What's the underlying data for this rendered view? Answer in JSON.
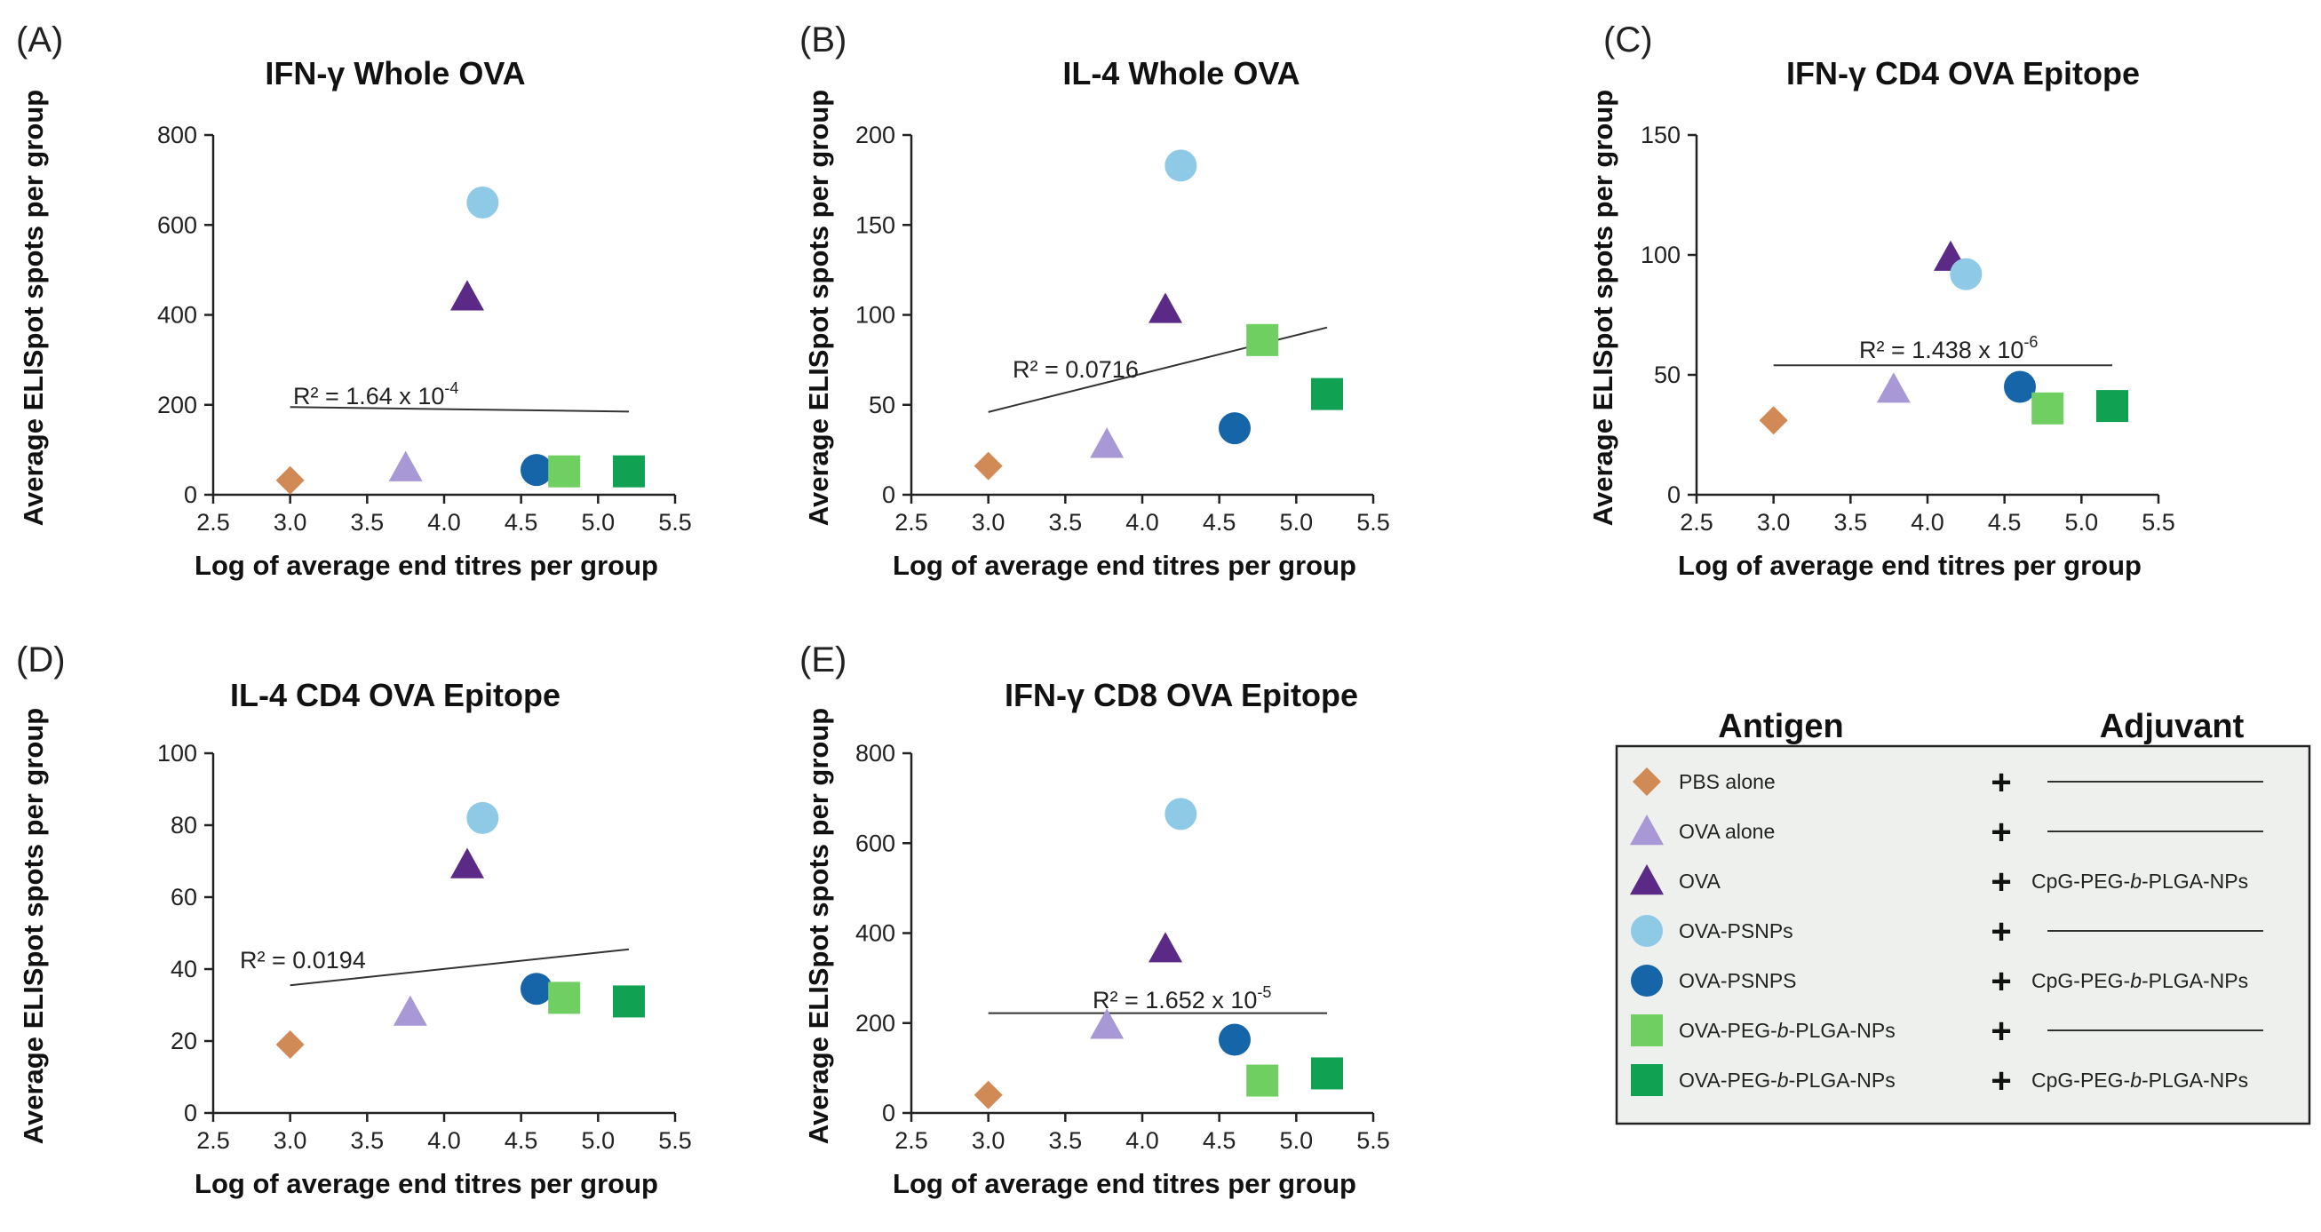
{
  "axis_text": {
    "xlabel": "Log of average end titres per group",
    "ylabel": "Average ELISpot spots per group",
    "x_ticks": [
      "2.5",
      "3.0",
      "3.5",
      "4.0",
      "4.5",
      "5.0",
      "5.5"
    ]
  },
  "colors": {
    "PBS alone": "#d18a55",
    "OVA alone": "#a899d6",
    "OVA": "#5b2a86",
    "OVA-PSNPs light": "#8ecae6",
    "OVA-PSNPS dark": "#1565a8",
    "OVA-PEG-b-PLGA-NPs light": "#6fd061",
    "OVA-PEG-b-PLGA-NPs dark": "#11a152"
  },
  "chart_data": [
    {
      "type": "scatter",
      "panel": "(A)",
      "title": "IFN-γ Whole OVA",
      "xlim": [
        2.5,
        5.5
      ],
      "ylim": [
        0,
        800
      ],
      "y_ticks": [
        "0",
        "200",
        "400",
        "600",
        "800"
      ],
      "r2_label": "R² = 1.64 x 10",
      "r2_exp": "-4",
      "trend": {
        "x": [
          3.0,
          5.2
        ],
        "y": [
          195,
          185
        ]
      },
      "points": [
        {
          "group": "PBS alone",
          "x": 3.0,
          "y": 32
        },
        {
          "group": "OVA alone",
          "x": 3.75,
          "y": 60
        },
        {
          "group": "OVA",
          "x": 4.15,
          "y": 440
        },
        {
          "group": "OVA-PSNPs light",
          "x": 4.25,
          "y": 650
        },
        {
          "group": "OVA-PSNPS dark",
          "x": 4.6,
          "y": 55
        },
        {
          "group": "OVA-PEG-b-PLGA-NPs light",
          "x": 4.78,
          "y": 52
        },
        {
          "group": "OVA-PEG-b-PLGA-NPs dark",
          "x": 5.2,
          "y": 52
        }
      ]
    },
    {
      "type": "scatter",
      "panel": "(B)",
      "title": "IL-4 Whole OVA",
      "xlim": [
        2.5,
        5.5
      ],
      "ylim": [
        0,
        200
      ],
      "y_ticks": [
        "0",
        "50",
        "100",
        "150",
        "200"
      ],
      "r2_label": "R² = 0.0716",
      "r2_exp": "",
      "trend": {
        "x": [
          3.0,
          5.2
        ],
        "y": [
          46,
          93
        ]
      },
      "points": [
        {
          "group": "PBS alone",
          "x": 3.0,
          "y": 16
        },
        {
          "group": "OVA alone",
          "x": 3.77,
          "y": 28
        },
        {
          "group": "OVA",
          "x": 4.15,
          "y": 103
        },
        {
          "group": "OVA-PSNPs light",
          "x": 4.25,
          "y": 183
        },
        {
          "group": "OVA-PSNPS dark",
          "x": 4.6,
          "y": 37
        },
        {
          "group": "OVA-PEG-b-PLGA-NPs light",
          "x": 4.78,
          "y": 86
        },
        {
          "group": "OVA-PEG-b-PLGA-NPs dark",
          "x": 5.2,
          "y": 56
        }
      ]
    },
    {
      "type": "scatter",
      "panel": "(C)",
      "title": "IFN-γ CD4 OVA Epitope",
      "xlim": [
        2.5,
        5.5
      ],
      "ylim": [
        0,
        150
      ],
      "y_ticks": [
        "0",
        "50",
        "100",
        "150"
      ],
      "r2_label": "R² = 1.438  x 10",
      "r2_exp": "-6",
      "trend": {
        "x": [
          3.0,
          5.2
        ],
        "y": [
          54,
          54
        ]
      },
      "points": [
        {
          "group": "PBS alone",
          "x": 3.0,
          "y": 31
        },
        {
          "group": "OVA alone",
          "x": 3.78,
          "y": 44
        },
        {
          "group": "OVA",
          "x": 4.15,
          "y": 99
        },
        {
          "group": "OVA-PSNPs light",
          "x": 4.25,
          "y": 92
        },
        {
          "group": "OVA-PSNPS dark",
          "x": 4.6,
          "y": 45
        },
        {
          "group": "OVA-PEG-b-PLGA-NPs light",
          "x": 4.78,
          "y": 36
        },
        {
          "group": "OVA-PEG-b-PLGA-NPs dark",
          "x": 5.2,
          "y": 37
        }
      ]
    },
    {
      "type": "scatter",
      "panel": "(D)",
      "title": "IL-4 CD4 OVA Epitope",
      "xlim": [
        2.5,
        5.5
      ],
      "ylim": [
        0,
        100
      ],
      "y_ticks": [
        "0",
        "20",
        "40",
        "60",
        "80",
        "100"
      ],
      "r2_label": "R² = 0.0194",
      "r2_exp": "",
      "trend": {
        "x": [
          3.0,
          5.2
        ],
        "y": [
          35.5,
          45.5
        ]
      },
      "points": [
        {
          "group": "PBS alone",
          "x": 3.0,
          "y": 19
        },
        {
          "group": "OVA alone",
          "x": 3.78,
          "y": 28
        },
        {
          "group": "OVA",
          "x": 4.15,
          "y": 69
        },
        {
          "group": "OVA-PSNPs light",
          "x": 4.25,
          "y": 82
        },
        {
          "group": "OVA-PSNPS dark",
          "x": 4.6,
          "y": 34.5
        },
        {
          "group": "OVA-PEG-b-PLGA-NPs light",
          "x": 4.78,
          "y": 32
        },
        {
          "group": "OVA-PEG-b-PLGA-NPs dark",
          "x": 5.2,
          "y": 31
        }
      ]
    },
    {
      "type": "scatter",
      "panel": "(E)",
      "title": "IFN-γ CD8 OVA Epitope",
      "xlim": [
        2.5,
        5.5
      ],
      "ylim": [
        0,
        800
      ],
      "y_ticks": [
        "0",
        "200",
        "400",
        "600",
        "800"
      ],
      "r2_label": "R² = 1.652 x 10",
      "r2_exp": "-5",
      "trend": {
        "x": [
          3.0,
          5.2
        ],
        "y": [
          222,
          222
        ]
      },
      "points": [
        {
          "group": "PBS alone",
          "x": 3.0,
          "y": 40
        },
        {
          "group": "OVA alone",
          "x": 3.77,
          "y": 195
        },
        {
          "group": "OVA",
          "x": 4.15,
          "y": 365
        },
        {
          "group": "OVA-PSNPs light",
          "x": 4.25,
          "y": 665
        },
        {
          "group": "OVA-PSNPS dark",
          "x": 4.6,
          "y": 163
        },
        {
          "group": "OVA-PEG-b-PLGA-NPs light",
          "x": 4.78,
          "y": 72
        },
        {
          "group": "OVA-PEG-b-PLGA-NPs dark",
          "x": 5.2,
          "y": 88
        }
      ]
    }
  ],
  "legend": {
    "antigen_header": "Antigen",
    "adjuvant_header": "Adjuvant",
    "plus": "+",
    "rows": [
      {
        "group": "PBS alone",
        "antigen": "PBS alone",
        "adjuvant": ""
      },
      {
        "group": "OVA alone",
        "antigen": "OVA alone",
        "adjuvant": ""
      },
      {
        "group": "OVA",
        "antigen": "OVA",
        "adjuvant_parts": [
          "CpG-PEG-",
          "b",
          "-PLGA-NPs"
        ]
      },
      {
        "group": "OVA-PSNPs light",
        "antigen": "OVA-PSNPs",
        "adjuvant": ""
      },
      {
        "group": "OVA-PSNPS dark",
        "antigen": "OVA-PSNPS",
        "adjuvant_parts": [
          "CpG-PEG-",
          "b",
          "-PLGA-NPs"
        ]
      },
      {
        "group": "OVA-PEG-b-PLGA-NPs light",
        "antigen_parts": [
          "OVA-PEG-",
          "b",
          "-PLGA-NPs"
        ],
        "adjuvant": ""
      },
      {
        "group": "OVA-PEG-b-PLGA-NPs dark",
        "antigen_parts": [
          "OVA-PEG-",
          "b",
          "-PLGA-NPs"
        ],
        "adjuvant_parts": [
          "CpG-PEG-",
          "b",
          "-PLGA-NPs"
        ]
      }
    ]
  }
}
